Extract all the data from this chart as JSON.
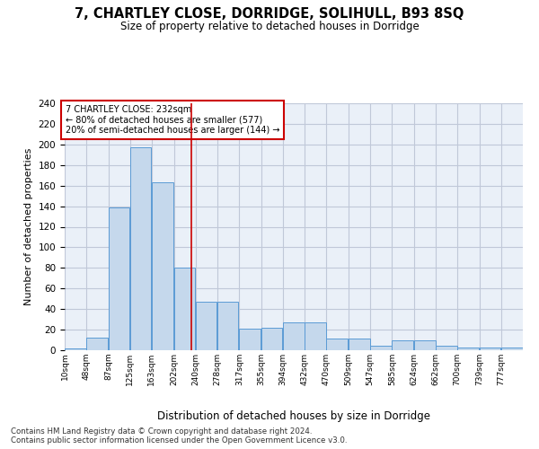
{
  "title": "7, CHARTLEY CLOSE, DORRIDGE, SOLIHULL, B93 8SQ",
  "subtitle": "Size of property relative to detached houses in Dorridge",
  "xlabel": "Distribution of detached houses by size in Dorridge",
  "ylabel": "Number of detached properties",
  "bar_color": "#c5d8ec",
  "bar_edge_color": "#5b9bd5",
  "grid_color": "#c0c8d8",
  "background_color": "#eaf0f8",
  "vline_x": 232,
  "vline_color": "#cc0000",
  "annotation_text": "7 CHARTLEY CLOSE: 232sqm\n← 80% of detached houses are smaller (577)\n20% of semi-detached houses are larger (144) →",
  "annotation_box_color": "#ffffff",
  "annotation_box_edge_color": "#cc0000",
  "bins": [
    10,
    48,
    87,
    125,
    163,
    202,
    240,
    278,
    317,
    355,
    394,
    432,
    470,
    509,
    547,
    585,
    624,
    662,
    700,
    739,
    777
  ],
  "counts": [
    2,
    12,
    139,
    197,
    163,
    80,
    47,
    47,
    21,
    22,
    27,
    27,
    11,
    11,
    4,
    10,
    10,
    4,
    3,
    3,
    3
  ],
  "ylim": [
    0,
    240
  ],
  "yticks": [
    0,
    20,
    40,
    60,
    80,
    100,
    120,
    140,
    160,
    180,
    200,
    220,
    240
  ],
  "footer": "Contains HM Land Registry data © Crown copyright and database right 2024.\nContains public sector information licensed under the Open Government Licence v3.0.",
  "tick_labels": [
    "10sqm",
    "48sqm",
    "87sqm",
    "125sqm",
    "163sqm",
    "202sqm",
    "240sqm",
    "278sqm",
    "317sqm",
    "355sqm",
    "394sqm",
    "432sqm",
    "470sqm",
    "509sqm",
    "547sqm",
    "585sqm",
    "624sqm",
    "662sqm",
    "700sqm",
    "739sqm",
    "777sqm"
  ]
}
